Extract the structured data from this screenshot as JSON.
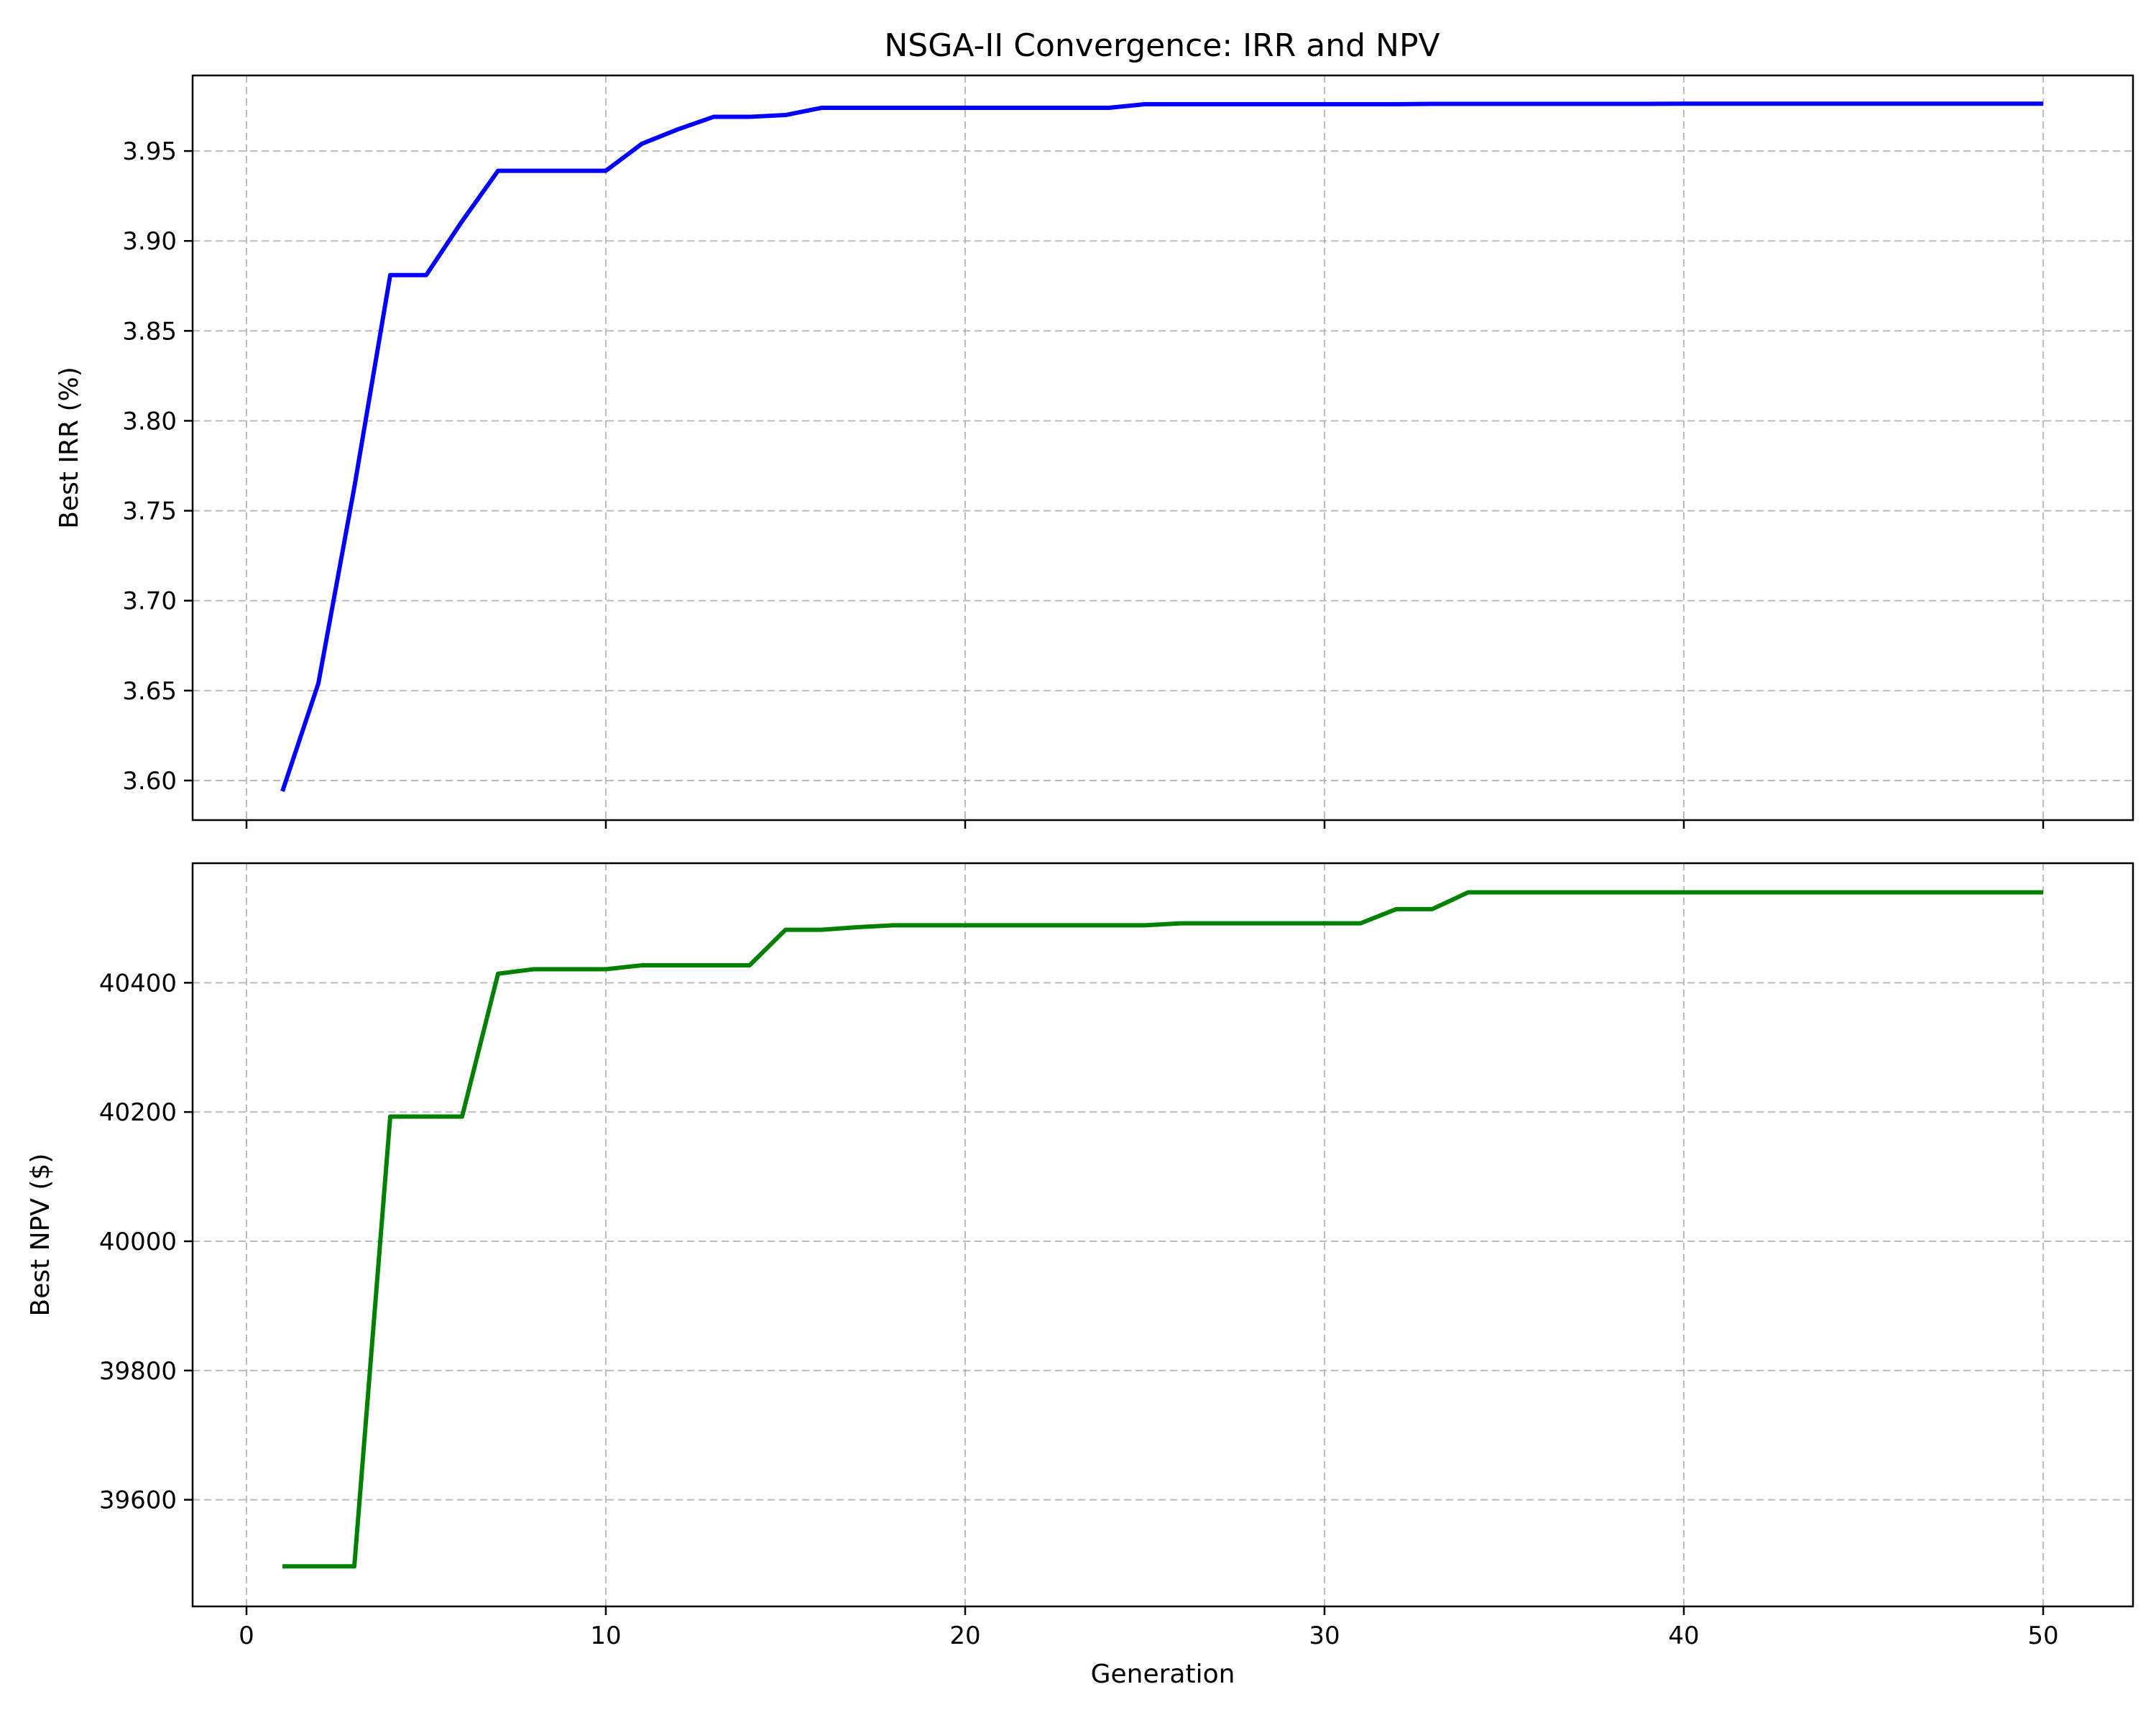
{
  "figure": {
    "title": "NSGA-II Convergence: IRR and NPV"
  },
  "chart_data": [
    {
      "type": "line",
      "title": "NSGA-II Convergence: IRR and NPV",
      "xlabel": "",
      "ylabel": "Best IRR (%)",
      "xlim": [
        -1.5,
        52.5
      ],
      "ylim": [
        3.578,
        3.992
      ],
      "xticks": [
        0,
        10,
        20,
        30,
        40,
        50
      ],
      "xtick_labels_visible": false,
      "yticks": [
        3.6,
        3.65,
        3.7,
        3.75,
        3.8,
        3.85,
        3.9,
        3.95
      ],
      "ytick_labels": [
        "3.60",
        "3.65",
        "3.70",
        "3.75",
        "3.80",
        "3.85",
        "3.90",
        "3.95"
      ],
      "grid": true,
      "color": "#0000ff",
      "x": [
        1,
        2,
        3,
        4,
        5,
        6,
        7,
        8,
        9,
        10,
        11,
        12,
        13,
        14,
        15,
        16,
        17,
        18,
        19,
        20,
        21,
        22,
        23,
        24,
        25,
        26,
        27,
        28,
        29,
        30,
        31,
        32,
        33,
        34,
        35,
        36,
        37,
        38,
        39,
        40,
        41,
        42,
        43,
        44,
        45,
        46,
        47,
        48,
        49,
        50
      ],
      "y": [
        3.594,
        3.654,
        3.763,
        3.881,
        3.881,
        3.911,
        3.939,
        3.939,
        3.939,
        3.939,
        3.954,
        3.962,
        3.969,
        3.969,
        3.97,
        3.974,
        3.974,
        3.974,
        3.974,
        3.974,
        3.974,
        3.974,
        3.974,
        3.974,
        3.976,
        3.976,
        3.976,
        3.976,
        3.976,
        3.976,
        3.976,
        3.976,
        3.9762,
        3.9762,
        3.9762,
        3.9762,
        3.9762,
        3.9762,
        3.9762,
        3.9763,
        3.9763,
        3.9763,
        3.9763,
        3.9763,
        3.9763,
        3.9763,
        3.9763,
        3.9763,
        3.9763,
        3.9763
      ]
    },
    {
      "type": "line",
      "xlabel": "Generation",
      "ylabel": "Best NPV ($)",
      "xlim": [
        -1.5,
        52.5
      ],
      "ylim": [
        39435,
        40585
      ],
      "xticks": [
        0,
        10,
        20,
        30,
        40,
        50
      ],
      "xtick_labels": [
        "0",
        "10",
        "20",
        "30",
        "40",
        "50"
      ],
      "yticks": [
        39600,
        39800,
        40000,
        40200,
        40400
      ],
      "ytick_labels": [
        "39600",
        "39800",
        "40000",
        "40200",
        "40400"
      ],
      "grid": true,
      "color": "#008000",
      "x": [
        1,
        2,
        3,
        4,
        5,
        6,
        7,
        8,
        9,
        10,
        11,
        12,
        13,
        14,
        15,
        16,
        17,
        18,
        19,
        20,
        21,
        22,
        23,
        24,
        25,
        26,
        27,
        28,
        29,
        30,
        31,
        32,
        33,
        34,
        35,
        36,
        37,
        38,
        39,
        40,
        41,
        42,
        43,
        44,
        45,
        46,
        47,
        48,
        49,
        50
      ],
      "y": [
        39497,
        39497,
        39497,
        40193,
        40193,
        40193,
        40414,
        40421,
        40421,
        40421,
        40427,
        40427,
        40427,
        40427,
        40482,
        40482,
        40486,
        40489,
        40489,
        40489,
        40489,
        40489,
        40489,
        40489,
        40489,
        40492,
        40492,
        40492,
        40492,
        40492,
        40492,
        40514,
        40514,
        40540,
        40540,
        40540,
        40540,
        40540,
        40540,
        40540,
        40540,
        40540,
        40540,
        40540,
        40540,
        40540,
        40540,
        40540,
        40540,
        40540
      ]
    }
  ]
}
